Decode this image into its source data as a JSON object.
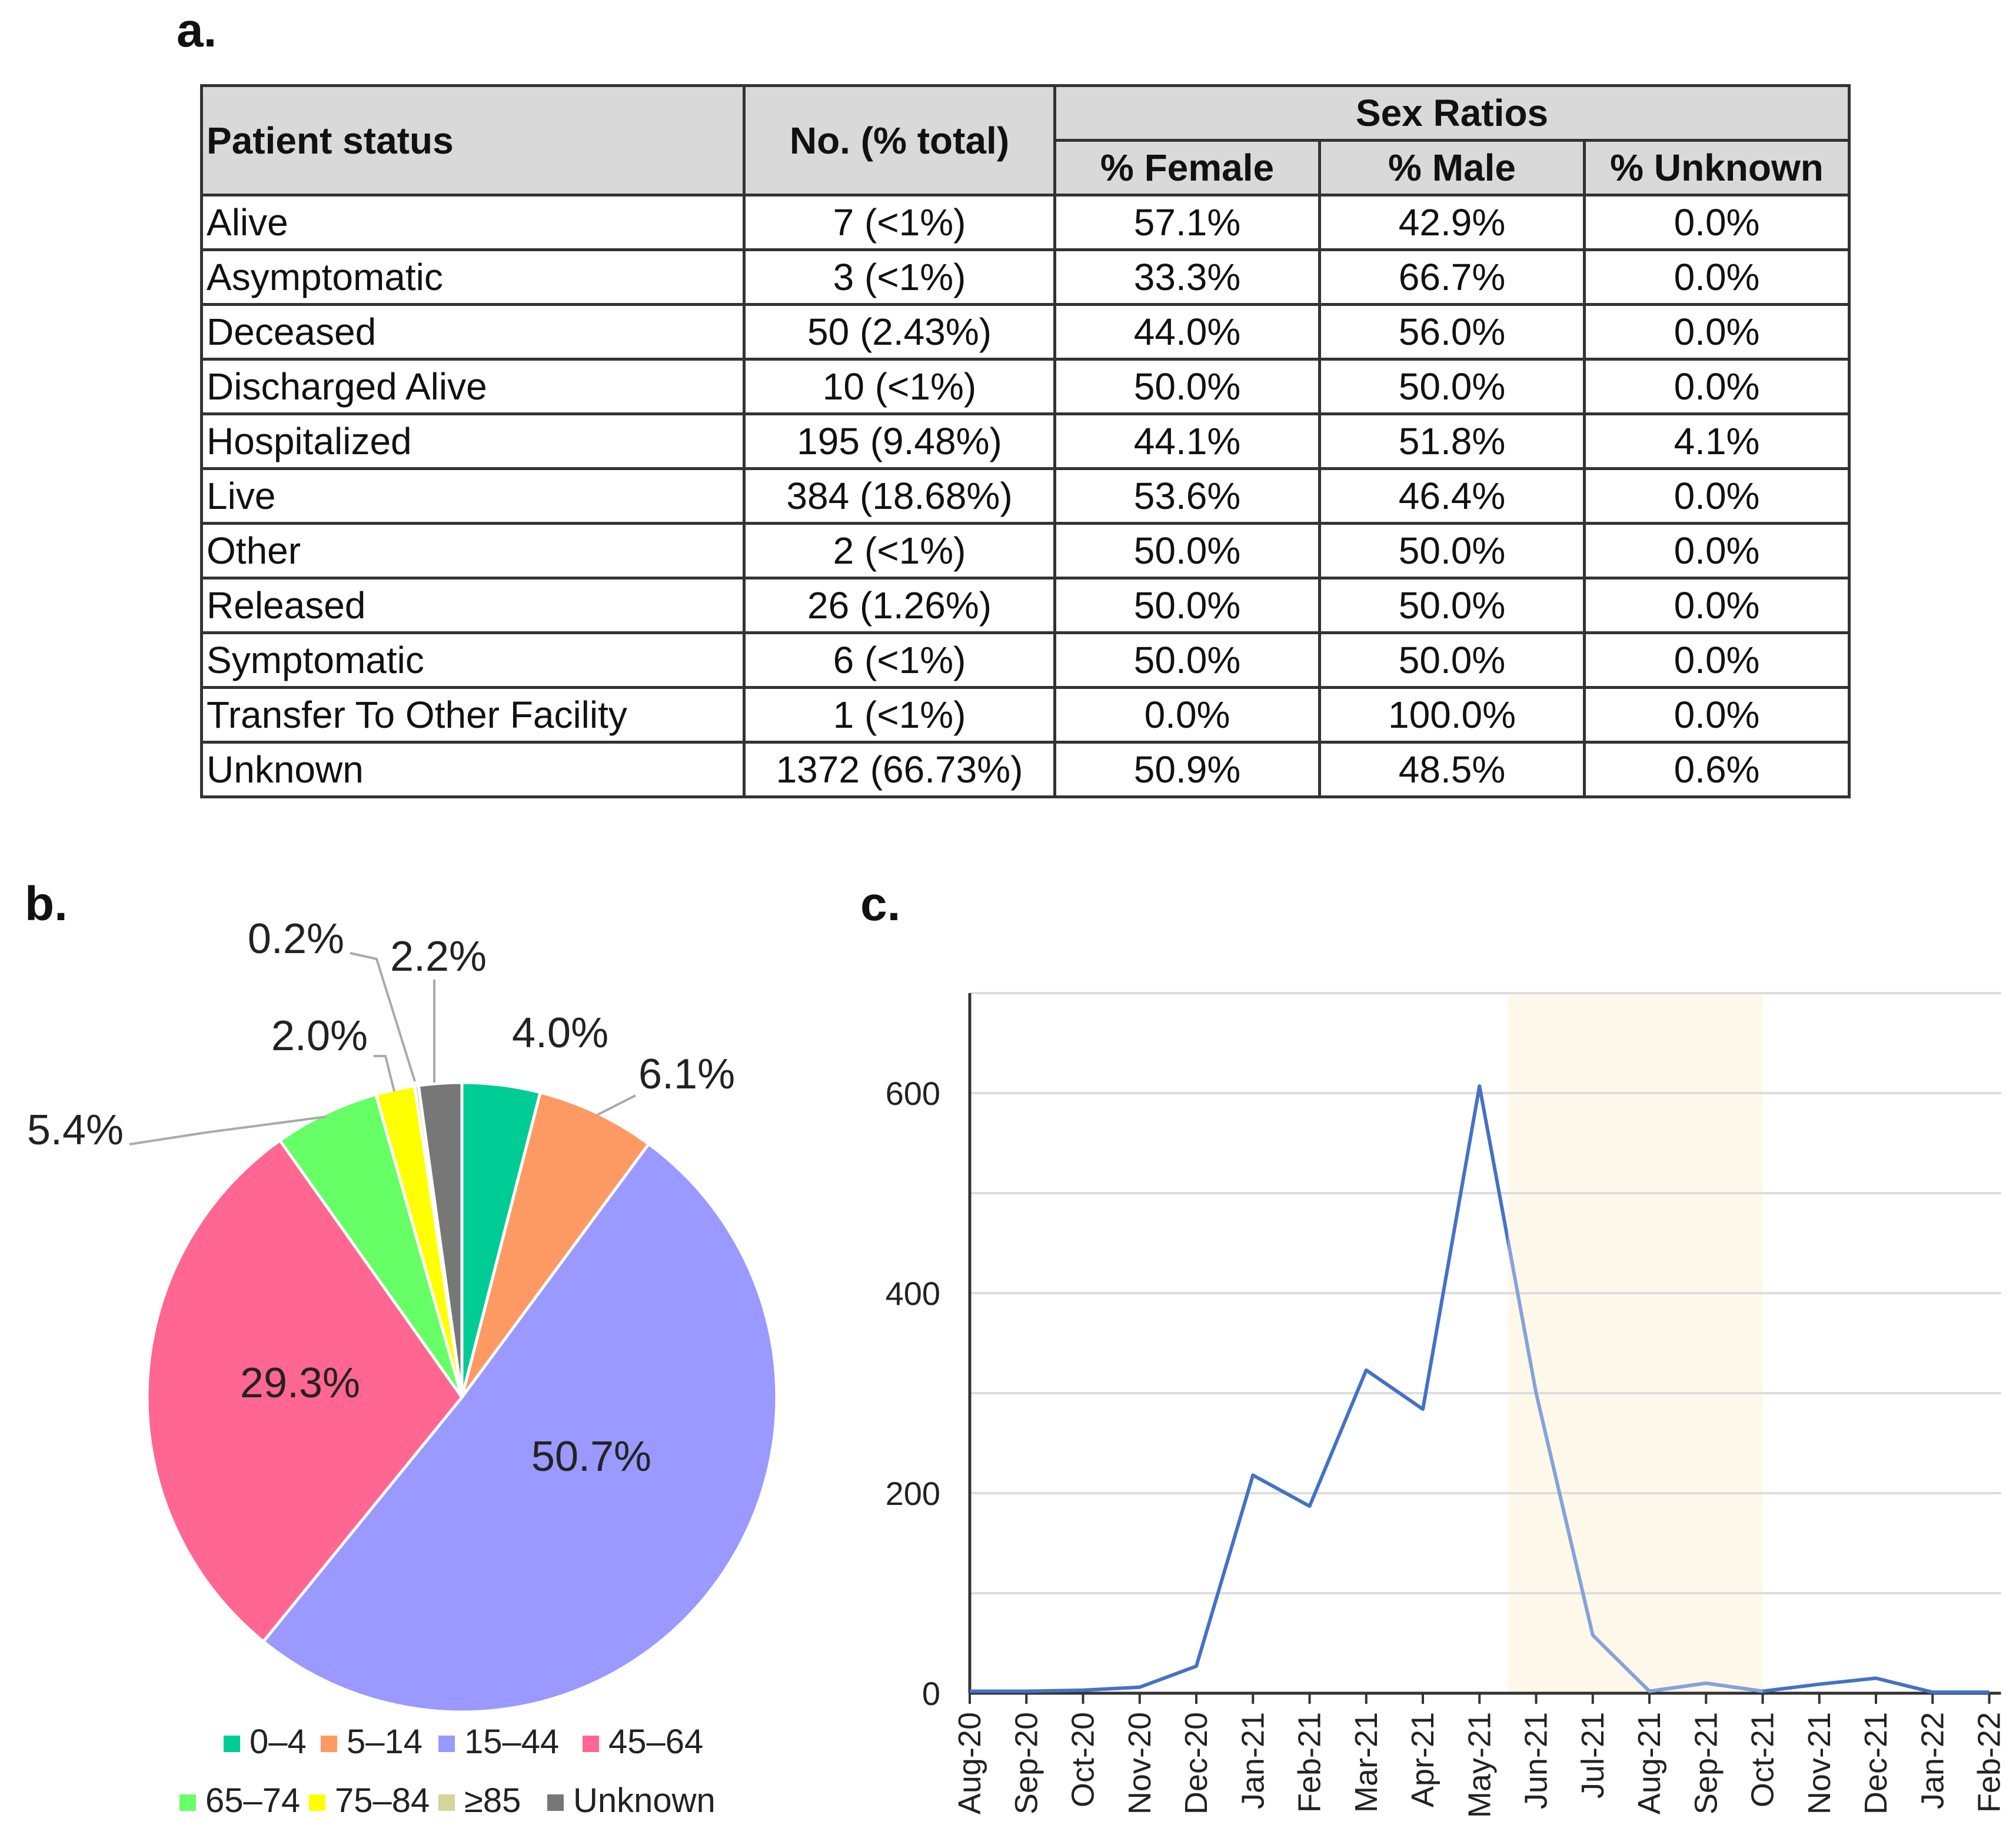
{
  "panels": {
    "a": "a.",
    "b": "b.",
    "c": "c."
  },
  "table": {
    "headers": {
      "status": "Patient status",
      "count": "No. (% total)",
      "group": "Sex Ratios",
      "female": "% Female",
      "male": "% Male",
      "unknown": "% Unknown"
    },
    "rows": [
      [
        "Alive",
        "7 (<1%)",
        "57.1%",
        "42.9%",
        "0.0%"
      ],
      [
        "Asymptomatic",
        "3 (<1%)",
        "33.3%",
        "66.7%",
        "0.0%"
      ],
      [
        "Deceased",
        "50 (2.43%)",
        "44.0%",
        "56.0%",
        "0.0%"
      ],
      [
        "Discharged Alive",
        "10 (<1%)",
        "50.0%",
        "50.0%",
        "0.0%"
      ],
      [
        "Hospitalized",
        "195 (9.48%)",
        "44.1%",
        "51.8%",
        "4.1%"
      ],
      [
        "Live",
        "384 (18.68%)",
        "53.6%",
        "46.4%",
        "0.0%"
      ],
      [
        "Other",
        "2 (<1%)",
        "50.0%",
        "50.0%",
        "0.0%"
      ],
      [
        "Released",
        "26 (1.26%)",
        "50.0%",
        "50.0%",
        "0.0%"
      ],
      [
        "Symptomatic",
        "6 (<1%)",
        "50.0%",
        "50.0%",
        "0.0%"
      ],
      [
        "Transfer To Other Facility",
        "1 (<1%)",
        "0.0%",
        "100.0%",
        "0.0%"
      ],
      [
        "Unknown",
        "1372 (66.73%)",
        "50.9%",
        "48.5%",
        "0.6%"
      ]
    ]
  },
  "chart_data": [
    {
      "type": "pie",
      "slices": [
        {
          "label": "0–4",
          "value": 4.0,
          "display": "4.0%",
          "color": "#00cc96"
        },
        {
          "label": "5–14",
          "value": 6.1,
          "display": "6.1%",
          "color": "#fd9a63"
        },
        {
          "label": "15–44",
          "value": 50.7,
          "display": "50.7%",
          "color": "#9999ff"
        },
        {
          "label": "45–64",
          "value": 29.3,
          "display": "29.3%",
          "color": "#ff6692"
        },
        {
          "label": "65–74",
          "value": 5.4,
          "display": "5.4%",
          "color": "#66ff66"
        },
        {
          "label": "75–84",
          "value": 2.0,
          "display": "2.0%",
          "color": "#ffff00"
        },
        {
          "label": "≥85",
          "value": 0.2,
          "display": "0.2%",
          "color": "#d4d49c"
        },
        {
          "label": "Unknown",
          "value": 2.2,
          "display": "2.2%",
          "color": "#777777"
        }
      ],
      "legend_position": "bottom"
    },
    {
      "type": "line",
      "x": [
        "Aug-20",
        "Sep-20",
        "Oct-20",
        "Nov-20",
        "Dec-20",
        "Jan-21",
        "Feb-21",
        "Mar-21",
        "Apr-21",
        "May-21",
        "Jun-21",
        "Jul-21",
        "Aug-21",
        "Sep-21",
        "Oct-21",
        "Nov-21",
        "Dec-21",
        "Jan-22",
        "Feb-22"
      ],
      "series": [
        {
          "values": [
            2,
            2,
            3,
            6,
            27,
            218,
            187,
            323,
            284,
            607,
            300,
            58,
            2,
            10,
            2,
            9,
            15,
            1,
            1
          ],
          "color": "#4472c4"
        }
      ],
      "yticks": [
        "0",
        "200",
        "400",
        "600"
      ],
      "ylim": [
        0,
        700
      ],
      "grid": true,
      "highlight": {
        "from": "May-21",
        "to": "Oct-21",
        "color": "#fdf8e9"
      }
    }
  ]
}
